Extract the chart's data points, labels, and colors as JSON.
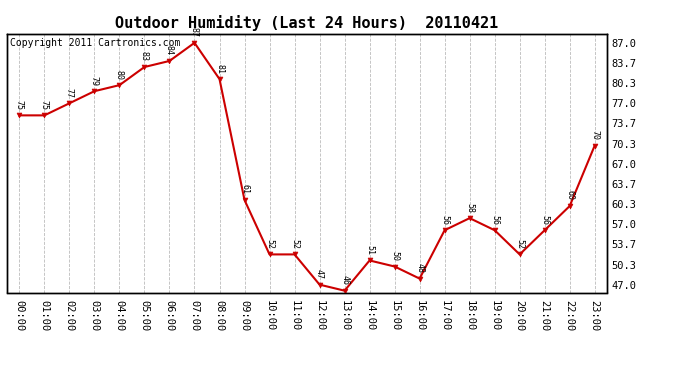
{
  "title": "Outdoor Humidity (Last 24 Hours)  20110421",
  "copyright": "Copyright 2011 Cartronics.com",
  "x_labels": [
    "00:00",
    "01:00",
    "02:00",
    "03:00",
    "04:00",
    "05:00",
    "06:00",
    "07:00",
    "08:00",
    "09:00",
    "10:00",
    "11:00",
    "12:00",
    "13:00",
    "14:00",
    "15:00",
    "16:00",
    "17:00",
    "18:00",
    "19:00",
    "20:00",
    "21:00",
    "22:00",
    "23:00"
  ],
  "y_values": [
    75,
    75,
    77,
    79,
    80,
    83,
    84,
    87,
    81,
    61,
    52,
    52,
    47,
    46,
    51,
    50,
    48,
    56,
    58,
    56,
    52,
    56,
    60,
    70
  ],
  "y_ticks": [
    47.0,
    50.3,
    53.7,
    57.0,
    60.3,
    63.7,
    67.0,
    70.3,
    73.7,
    77.0,
    80.3,
    83.7,
    87.0
  ],
  "ylim": [
    45.7,
    88.5
  ],
  "line_color": "#cc0000",
  "marker_color": "#cc0000",
  "bg_color": "#ffffff",
  "grid_color": "#bbbbbb",
  "title_fontsize": 11,
  "copyright_fontsize": 7,
  "label_fontsize": 7.5
}
